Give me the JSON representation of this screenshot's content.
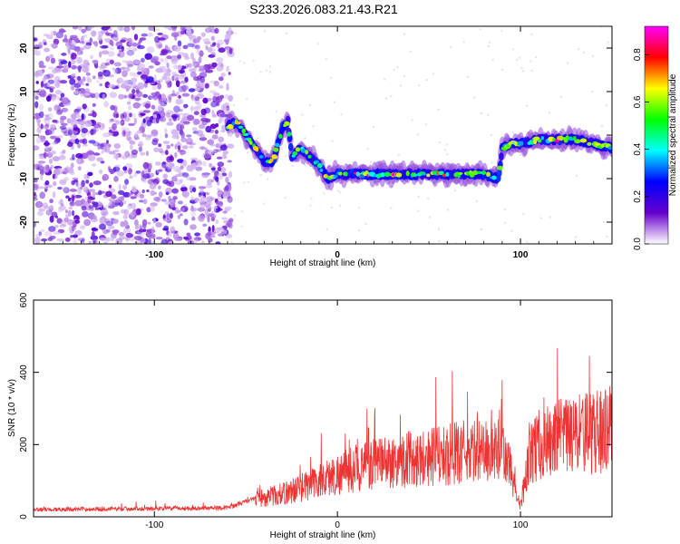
{
  "title": "S233.2026.083.21.43.R21",
  "chart_data": [
    {
      "type": "heatmap",
      "name": "spectrogram",
      "xlabel": "Height of straight line (km)",
      "ylabel": "Frequency (Hz)",
      "xlim": [
        -166,
        150
      ],
      "ylim": [
        -25,
        25
      ],
      "xticks": [
        -100,
        0,
        100
      ],
      "yticks": [
        -20,
        -10,
        0,
        10,
        20
      ],
      "colorbar": {
        "label": "Normalized spectral amplitude",
        "range": [
          0.0,
          0.92
        ],
        "ticks": [
          0.0,
          0.2,
          0.4,
          0.6,
          0.8
        ],
        "colors": [
          "#ffffff",
          "#6600cc",
          "#0000ff",
          "#00ffff",
          "#00ff00",
          "#ffff00",
          "#ff0000",
          "#ff00ff"
        ]
      },
      "ridge": {
        "x": [
          -60,
          -55,
          -50,
          -45,
          -40,
          -35,
          -30,
          -27,
          -25,
          -20,
          -15,
          -10,
          -5,
          0,
          10,
          20,
          30,
          40,
          50,
          60,
          70,
          80,
          88,
          90,
          95,
          100,
          110,
          120,
          130,
          140,
          150
        ],
        "y": [
          2,
          3,
          0,
          -3,
          -6,
          -6,
          2,
          3,
          -5,
          -3,
          -5,
          -7,
          -10,
          -9,
          -9,
          -9,
          -9,
          -9,
          -9,
          -9,
          -9,
          -9,
          -10,
          -3,
          -2,
          -2,
          -1,
          -1,
          -1,
          -2,
          -3
        ]
      }
    },
    {
      "type": "line",
      "name": "snr",
      "xlabel": "Height of straight line (km)",
      "ylabel": "SNR (10 * v/v)",
      "xlim": [
        -166,
        150
      ],
      "ylim": [
        0,
        600
      ],
      "xticks": [
        -100,
        0,
        100
      ],
      "yticks": [
        0,
        200,
        400,
        600
      ],
      "color": "#ee3333",
      "trend": {
        "x": [
          -166,
          -60,
          -40,
          -30,
          -20,
          -10,
          0,
          10,
          20,
          30,
          40,
          50,
          60,
          70,
          80,
          90,
          95,
          98,
          100,
          105,
          110,
          120,
          130,
          140,
          150
        ],
        "y": [
          20,
          25,
          60,
          70,
          90,
          110,
          130,
          150,
          160,
          170,
          180,
          185,
          190,
          200,
          200,
          200,
          140,
          60,
          30,
          200,
          220,
          240,
          250,
          260,
          270
        ]
      }
    }
  ]
}
